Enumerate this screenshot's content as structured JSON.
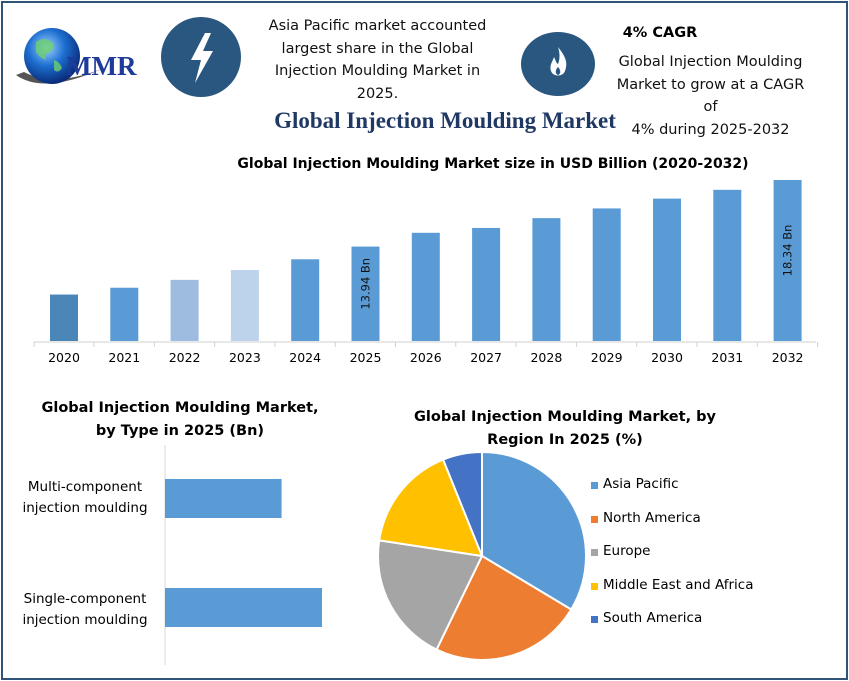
{
  "header": {
    "logo_text": "MMR",
    "icons": [
      "lightning-icon",
      "flame-icon"
    ],
    "insight_text": [
      "Asia Pacific market accounted",
      "largest share in the Global",
      "Injection Moulding Market in",
      "2025."
    ],
    "cagr_title": "4% CAGR",
    "cagr_text": [
      "Global Injection Moulding",
      "Market to grow at a CAGR of",
      "4% during 2025-2032"
    ],
    "main_title": "Global Injection Moulding Market"
  },
  "colors": {
    "frame": "#2f5477",
    "icon_circle": "#2a5780",
    "title": "#1f3864"
  },
  "chart_data": [
    {
      "type": "bar",
      "title": "Global Injection Moulding Market size in USD Billion (2020-2032)",
      "categories": [
        "2020",
        "2021",
        "2022",
        "2023",
        "2024",
        "2025",
        "2026",
        "2027",
        "2028",
        "2029",
        "2030",
        "2031",
        "2032"
      ],
      "values": [
        10.77,
        11.22,
        11.74,
        12.39,
        13.1,
        13.94,
        14.85,
        15.17,
        15.82,
        16.46,
        17.11,
        17.69,
        18.34
      ],
      "colors": [
        "#4a86b8",
        "#5b9bd5",
        "#9dbce0",
        "#bdd3ec",
        "#5b9bd5",
        "#5b9bd5",
        "#5b9bd5",
        "#5b9bd5",
        "#5b9bd5",
        "#5b9bd5",
        "#5b9bd5",
        "#5b9bd5",
        "#5b9bd5"
      ],
      "data_labels": {
        "2025": "13.94 Bn",
        "2032": "18.34 Bn"
      },
      "ylim": [
        7.7,
        19
      ],
      "grid": false
    },
    {
      "type": "bar",
      "orientation": "horizontal",
      "title_lines": [
        "Global Injection Moulding Market,",
        "by Type in 2025 (Bn)"
      ],
      "categories": [
        [
          "Multi-component",
          "injection moulding"
        ],
        [
          "Single-component",
          "injection moulding"
        ]
      ],
      "values": [
        5.94,
        8.0
      ],
      "color": "#5b9bd5"
    },
    {
      "type": "pie",
      "title_lines": [
        "Global Injection Moulding Market, by",
        "Region In 2025 (%)"
      ],
      "labels": [
        "Asia Pacific",
        "North America",
        "Europe",
        "Middle East and Africa",
        "South America"
      ],
      "values": [
        33.6,
        23.6,
        20.2,
        16.5,
        6.1
      ],
      "colors": [
        "#5b9bd5",
        "#ed7d31",
        "#a5a5a5",
        "#ffc000",
        "#4472c4"
      ],
      "legend": "right"
    }
  ]
}
